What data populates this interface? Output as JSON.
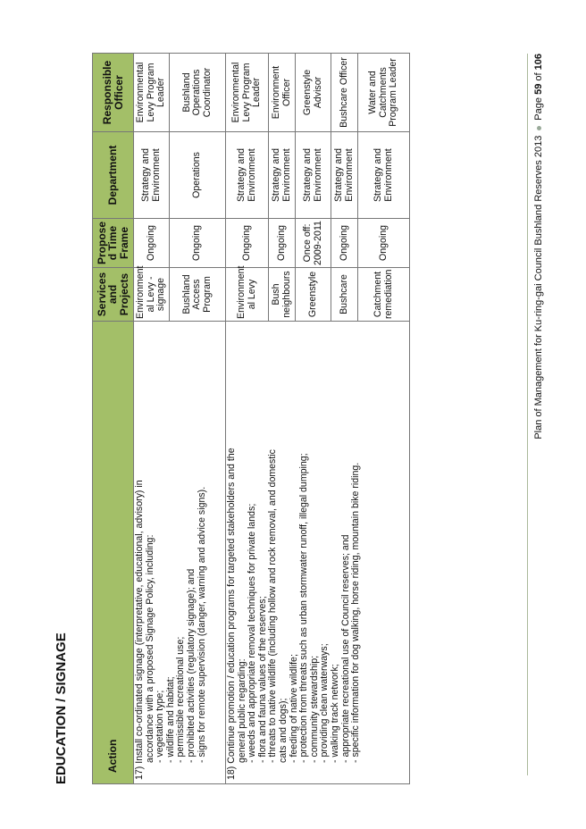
{
  "heading": "EDUCATION / SIGNAGE",
  "headers": {
    "action": "Action",
    "services": "Services and Projects",
    "timeframe": "Propose d Time Frame",
    "department": "Department",
    "officer": "Responsible Officer"
  },
  "actions": [
    {
      "lines": [
        "17) Install co-ordinated signage (interpretative, educational, advisory) in",
        "accordance with a proposed Signage Policy, including:",
        "- vegetation type;",
        "- wildlife and habitat;",
        "- permissible recreational use;",
        "- prohibited activities (regulatory signage); and",
        "- signs for remote supervision (danger, warning and advice signs)."
      ]
    },
    {
      "lines": [
        "18) Continue promotion / education programs for targeted stakeholders and the",
        "general public regarding:",
        "- weeds and appropriate removal techniques for private lands;",
        "- flora and fauna values of the reserves;",
        "- threats to native wildlife (including hollow and rock removal, and domestic",
        "cats and dogs);",
        "- feeding of native wildlife;",
        "- protection from threats such as urban stormwater runoff, illegal dumping;",
        "- community stewardship;",
        "- providing clean waterways;",
        "- walking track network;",
        "- appropriate recreational use of Council reserves; and",
        "- specific information for dog walking, horse riding, mountain bike riding."
      ]
    }
  ],
  "rows": [
    {
      "services": "Environment al Levy - signage",
      "timeframe": "Ongoing",
      "department": "Strategy and Environment",
      "officer": "Environmental Levy Program Leader"
    },
    {
      "services": "Bushland Access Program",
      "timeframe": "Ongoing",
      "department": "Operations",
      "officer": "Bushland Operations Coordinator"
    },
    {
      "services": "Environment al Levy",
      "timeframe": "Ongoing",
      "department": "Strategy and Environment",
      "officer": "Environmental Levy Program Leader"
    },
    {
      "services": "Bush neighbours",
      "timeframe": "Ongoing",
      "department": "Strategy and Environment",
      "officer": "Environment Officer"
    },
    {
      "services": "Greenstyle",
      "timeframe": "Once off: 2009-2011",
      "department": "Strategy and Environment",
      "officer": "Greenstyle Advisor"
    },
    {
      "services": "Bushcare",
      "timeframe": "Ongoing",
      "department": "Strategy and Environment",
      "officer": "Bushcare Officer"
    },
    {
      "services": "Catchment remediation",
      "timeframe": "Ongoing",
      "department": "Strategy and Environment",
      "officer": "Water and Catchments Program Leader"
    }
  ],
  "footer": {
    "title": "Plan of Management for Ku-ring-gai Council Bushland Reserves 2013",
    "page_prefix": "Page",
    "page": "59",
    "page_of": "of",
    "total": "106"
  },
  "colors": {
    "header_bg": "#a3bf68"
  }
}
